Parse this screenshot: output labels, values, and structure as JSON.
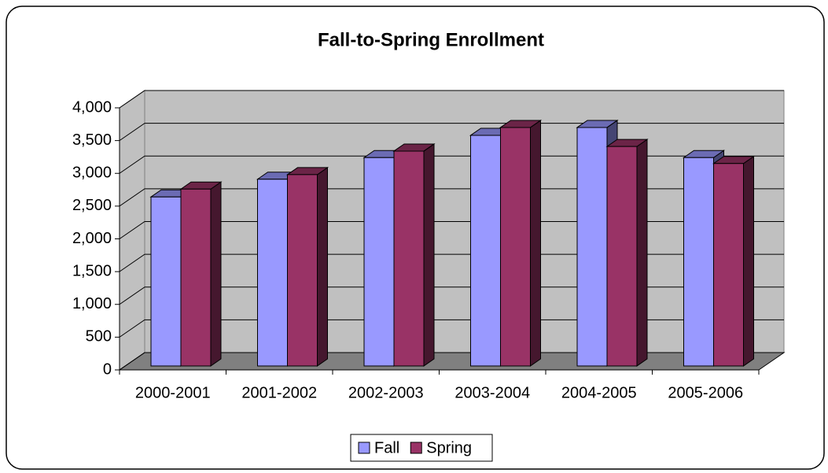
{
  "chart_data": {
    "type": "bar3d",
    "title": "Fall-to-Spring Enrollment",
    "categories": [
      "2000-2001",
      "2001-2002",
      "2002-2003",
      "2003-2004",
      "2004-2005",
      "2005-2006"
    ],
    "series": [
      {
        "name": "Fall",
        "color": "#9999ff",
        "values": [
          2580,
          2850,
          3180,
          3520,
          3640,
          3180
        ]
      },
      {
        "name": "Spring",
        "color": "#993366",
        "values": [
          2700,
          2920,
          3280,
          3640,
          3350,
          3090
        ]
      }
    ],
    "ylim": [
      0,
      4000
    ],
    "yticks": [
      0,
      500,
      {
        "value": 1000,
        "label": "1,000"
      },
      {
        "value": 1500,
        "label": "1,500"
      },
      {
        "value": 2000,
        "label": "2,000"
      },
      {
        "value": 2500,
        "label": "2,500"
      },
      {
        "value": 3000,
        "label": "3,000"
      },
      {
        "value": 3500,
        "label": "3,500"
      },
      {
        "value": 4000,
        "label": "4,000"
      }
    ],
    "grid": true,
    "legend": "bottom"
  }
}
